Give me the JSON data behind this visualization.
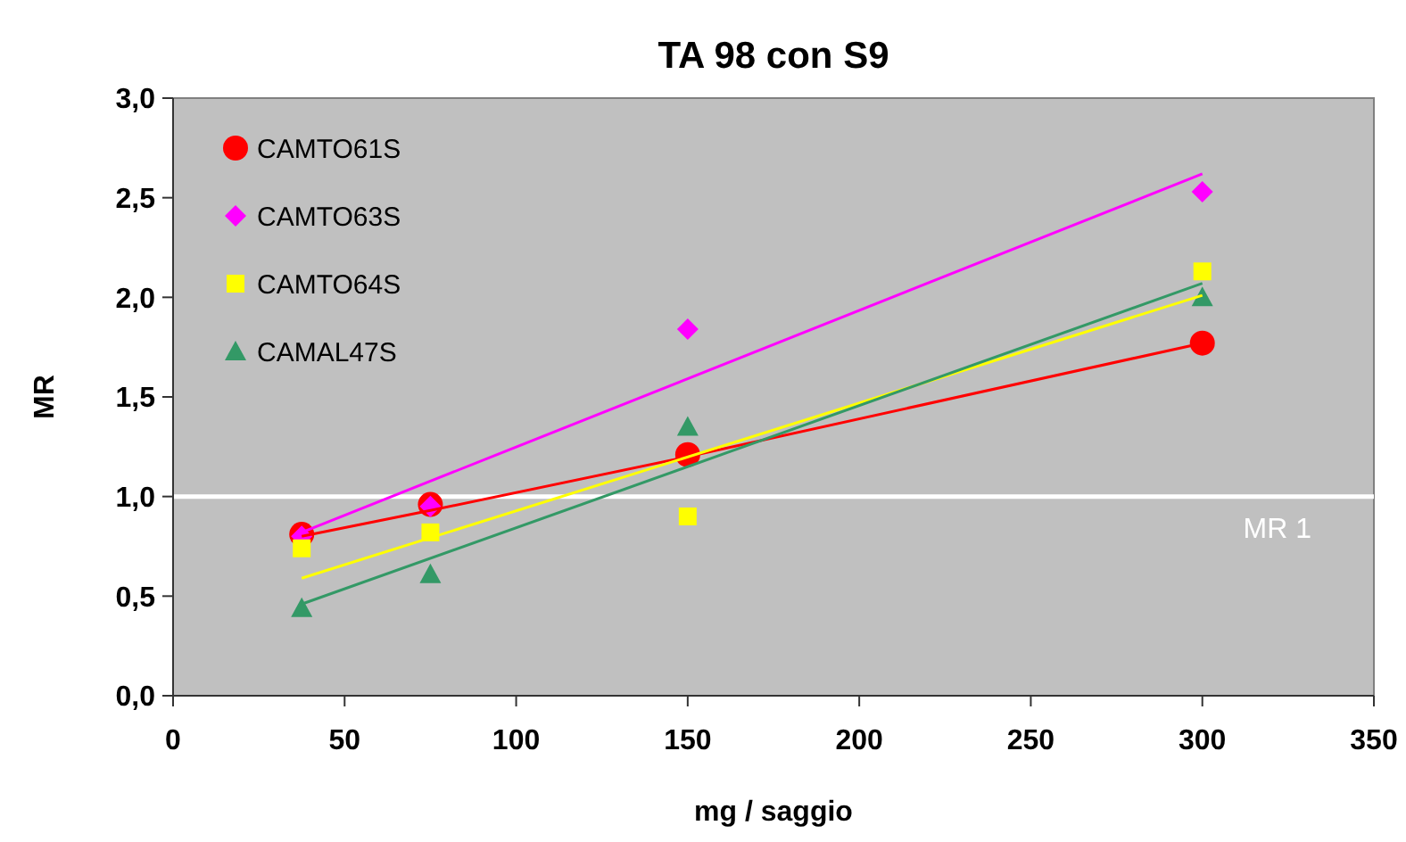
{
  "chart_data": {
    "type": "scatter",
    "title": "TA 98 con S9",
    "xlabel": "mg / saggio",
    "ylabel": "MR",
    "x": [
      37.5,
      75,
      150,
      300
    ],
    "series": [
      {
        "name": "CAMTO61S",
        "color": "#ff0000",
        "marker": "circle",
        "values": [
          0.81,
          0.96,
          1.21,
          1.77
        ]
      },
      {
        "name": "CAMTO63S",
        "color": "#ff00ff",
        "marker": "diamond",
        "values": [
          0.8,
          0.95,
          1.84,
          2.53
        ]
      },
      {
        "name": "CAMTO64S",
        "color": "#ffff00",
        "marker": "square",
        "values": [
          0.74,
          0.82,
          0.9,
          2.13
        ]
      },
      {
        "name": "CAMAL47S",
        "color": "#339966",
        "marker": "triangle",
        "values": [
          0.44,
          0.61,
          1.35,
          2.0
        ]
      },
      {
        "type": "line",
        "color": "#ff0000",
        "marker": "none",
        "x": [
          37.5,
          75,
          150,
          300
        ],
        "values": [
          0.8,
          0.93,
          1.2,
          1.77
        ]
      },
      {
        "type": "line",
        "color": "#ff00ff",
        "marker": "none",
        "x": [
          37.5,
          300
        ],
        "values": [
          0.82,
          2.62
        ]
      },
      {
        "type": "line",
        "color": "#ffff00",
        "marker": "none",
        "x": [
          37.5,
          300
        ],
        "values": [
          0.59,
          2.01
        ]
      },
      {
        "type": "line",
        "color": "#339966",
        "marker": "none",
        "x": [
          37.5,
          300
        ],
        "values": [
          0.46,
          2.07
        ]
      }
    ],
    "xlim": [
      0,
      350
    ],
    "xticks": [
      0,
      50,
      100,
      150,
      200,
      250,
      300,
      350
    ],
    "ylim": [
      0,
      3
    ],
    "yticks": [
      {
        "value": 0,
        "label": "0,0"
      },
      {
        "value": 0.5,
        "label": "0,5"
      },
      {
        "value": 1,
        "label": "1,0"
      },
      {
        "value": 1.5,
        "label": "1,5"
      },
      {
        "value": 2,
        "label": "2,0"
      },
      {
        "value": 2.5,
        "label": "2,5"
      },
      {
        "value": 3,
        "label": "3,0"
      }
    ],
    "ref_lines": [
      {
        "axis": "y",
        "value": 1,
        "label": "MR 1",
        "color": "#ffffff"
      }
    ],
    "legend": "top left",
    "grid": false
  }
}
